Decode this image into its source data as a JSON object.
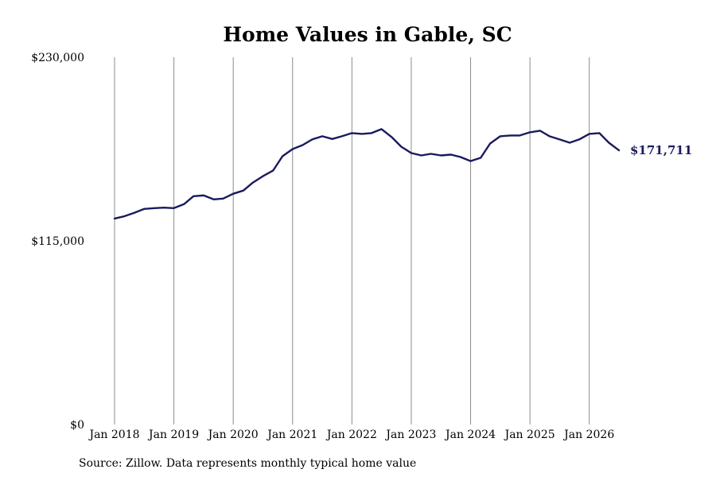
{
  "chart_data": {
    "type": "line",
    "title": "Home Values in Gable, SC",
    "xlabel": "",
    "ylabel": "",
    "ylim": [
      0,
      230000
    ],
    "yticks": [
      {
        "value": 0,
        "label": "$0"
      },
      {
        "value": 115000,
        "label": "$115,000"
      },
      {
        "value": 230000,
        "label": "$230,000"
      }
    ],
    "xticks": [
      {
        "value": 2018,
        "label": "Jan 2018"
      },
      {
        "value": 2019,
        "label": "Jan 2019"
      },
      {
        "value": 2020,
        "label": "Jan 2020"
      },
      {
        "value": 2021,
        "label": "Jan 2021"
      },
      {
        "value": 2022,
        "label": "Jan 2022"
      },
      {
        "value": 2023,
        "label": "Jan 2023"
      },
      {
        "value": 2024,
        "label": "Jan 2024"
      },
      {
        "value": 2025,
        "label": "Jan 2025"
      },
      {
        "value": 2026,
        "label": "Jan 2026"
      }
    ],
    "xlim": [
      2018,
      2026.5
    ],
    "grid": "vertical",
    "series": [
      {
        "color": "#1a1a5e",
        "end_label": "$171,711",
        "points": [
          [
            2018.0,
            129000
          ],
          [
            2018.17,
            130500
          ],
          [
            2018.33,
            132500
          ],
          [
            2018.5,
            135000
          ],
          [
            2018.67,
            135500
          ],
          [
            2018.83,
            135800
          ],
          [
            2019.0,
            135500
          ],
          [
            2019.17,
            138000
          ],
          [
            2019.33,
            143000
          ],
          [
            2019.5,
            143500
          ],
          [
            2019.67,
            141000
          ],
          [
            2019.83,
            141500
          ],
          [
            2020.0,
            144500
          ],
          [
            2020.17,
            146500
          ],
          [
            2020.33,
            151500
          ],
          [
            2020.5,
            155500
          ],
          [
            2020.67,
            159000
          ],
          [
            2020.83,
            168000
          ],
          [
            2021.0,
            172500
          ],
          [
            2021.17,
            175000
          ],
          [
            2021.33,
            178500
          ],
          [
            2021.5,
            180500
          ],
          [
            2021.67,
            178800
          ],
          [
            2021.83,
            180500
          ],
          [
            2022.0,
            182500
          ],
          [
            2022.17,
            182000
          ],
          [
            2022.33,
            182500
          ],
          [
            2022.5,
            185000
          ],
          [
            2022.67,
            180000
          ],
          [
            2022.83,
            174000
          ],
          [
            2023.0,
            170000
          ],
          [
            2023.17,
            168500
          ],
          [
            2023.33,
            169500
          ],
          [
            2023.5,
            168500
          ],
          [
            2023.67,
            169000
          ],
          [
            2023.83,
            167500
          ],
          [
            2024.0,
            165000
          ],
          [
            2024.17,
            167000
          ],
          [
            2024.33,
            176000
          ],
          [
            2024.5,
            180500
          ],
          [
            2024.67,
            181000
          ],
          [
            2024.83,
            181000
          ],
          [
            2025.0,
            183000
          ],
          [
            2025.17,
            184000
          ],
          [
            2025.33,
            180500
          ],
          [
            2025.5,
            178500
          ],
          [
            2025.67,
            176500
          ],
          [
            2025.83,
            178500
          ],
          [
            2026.0,
            182000
          ],
          [
            2026.17,
            182500
          ],
          [
            2026.33,
            176500
          ],
          [
            2026.5,
            171711
          ]
        ]
      }
    ]
  },
  "source": "Source: Zillow. Data represents monthly typical home value"
}
